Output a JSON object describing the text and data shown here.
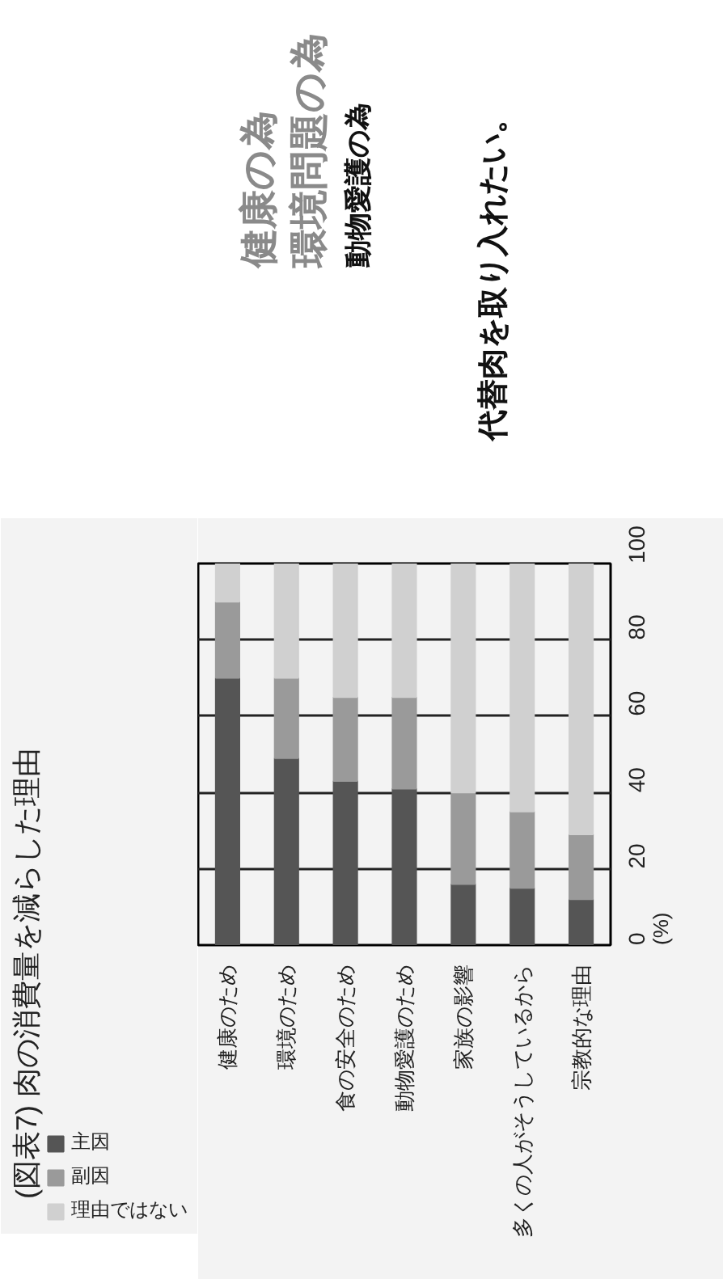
{
  "chart_data": {
    "type": "bar",
    "stacked": true,
    "title": "(図表7) 肉の消費量を減らした理由",
    "categories": [
      "健康のため",
      "環境のため",
      "食の安全のため",
      "動物愛護のため",
      "家族の影響",
      "多くの人がそうしているから",
      "宗教的な理由"
    ],
    "series": [
      {
        "name": "主因",
        "color": "#555555",
        "values": [
          70,
          49,
          43,
          41,
          16,
          15,
          12
        ]
      },
      {
        "name": "副因",
        "color": "#9a9a9a",
        "values": [
          20,
          21,
          22,
          24,
          24,
          20,
          17
        ]
      },
      {
        "name": "理由ではない",
        "color": "#d0d0d0",
        "values": [
          10,
          30,
          35,
          35,
          60,
          65,
          71
        ]
      }
    ],
    "ylim": [
      0,
      100
    ],
    "yticks": [
      0,
      20,
      40,
      60,
      80,
      100
    ],
    "ylabel": "(%)",
    "grid": "y",
    "legend": "left",
    "annotations": [
      "健康の為",
      "環境問題の為",
      "動物愛護の為",
      "代替肉を取り入れたい。"
    ]
  }
}
